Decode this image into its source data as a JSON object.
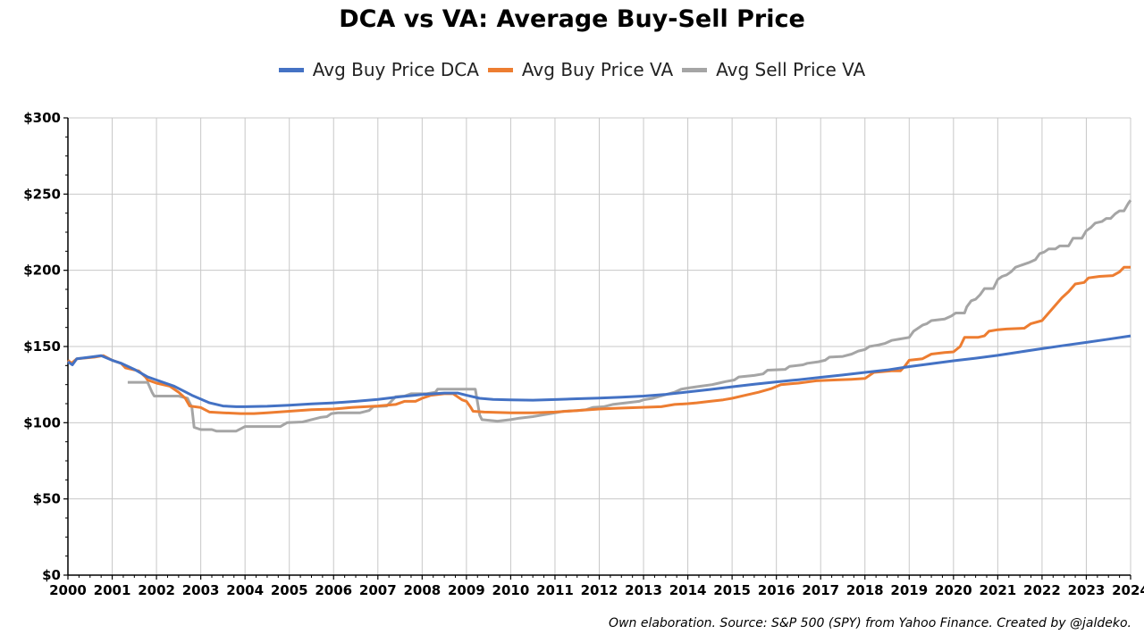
{
  "chart_data": {
    "type": "line",
    "title": "DCA vs VA: Average Buy-Sell Price",
    "xlabel": "",
    "ylabel": "",
    "xlim": [
      2000,
      2024
    ],
    "ylim": [
      0,
      300
    ],
    "x_ticks": [
      2000,
      2001,
      2002,
      2003,
      2004,
      2005,
      2006,
      2007,
      2008,
      2009,
      2010,
      2011,
      2012,
      2013,
      2014,
      2015,
      2016,
      2017,
      2018,
      2019,
      2020,
      2021,
      2022,
      2023,
      2024
    ],
    "x_tick_labels": [
      "2000",
      "2001",
      "2002",
      "2003",
      "2004",
      "2005",
      "2006",
      "2007",
      "2008",
      "2009",
      "2010",
      "2011",
      "2012",
      "2013",
      "2014",
      "2015",
      "2016",
      "2017",
      "2018",
      "2019",
      "2020",
      "2021",
      "2022",
      "2023",
      "2024"
    ],
    "y_ticks": [
      0,
      50,
      100,
      150,
      200,
      250,
      300
    ],
    "y_tick_labels": [
      "$0",
      "$50",
      "$100",
      "$150",
      "$200",
      "$250",
      "$300"
    ],
    "grid": true,
    "legend_position": "top-center",
    "series": [
      {
        "name": "Avg Buy Price DCA",
        "color": "#4472C4",
        "points": [
          [
            2000.0,
            140
          ],
          [
            2000.1,
            138
          ],
          [
            2000.2,
            142
          ],
          [
            2000.5,
            143
          ],
          [
            2000.75,
            144
          ],
          [
            2001.0,
            141
          ],
          [
            2001.2,
            139
          ],
          [
            2001.5,
            135
          ],
          [
            2001.8,
            130
          ],
          [
            2002.0,
            128
          ],
          [
            2002.4,
            124
          ],
          [
            2002.8,
            118
          ],
          [
            2003.2,
            113
          ],
          [
            2003.5,
            111
          ],
          [
            2003.8,
            110.5
          ],
          [
            2004.0,
            110.5
          ],
          [
            2004.5,
            110.8
          ],
          [
            2005.0,
            111.5
          ],
          [
            2005.5,
            112.3
          ],
          [
            2006.0,
            113.0
          ],
          [
            2006.5,
            114.0
          ],
          [
            2007.0,
            115.3
          ],
          [
            2007.5,
            117.0
          ],
          [
            2008.0,
            118.5
          ],
          [
            2008.5,
            119.5
          ],
          [
            2008.8,
            119.5
          ],
          [
            2009.0,
            118
          ],
          [
            2009.3,
            116
          ],
          [
            2009.6,
            115.3
          ],
          [
            2010.0,
            115.0
          ],
          [
            2010.5,
            114.8
          ],
          [
            2011.0,
            115.2
          ],
          [
            2011.5,
            115.7
          ],
          [
            2012.0,
            116.2
          ],
          [
            2012.5,
            116.8
          ],
          [
            2013.0,
            117.5
          ],
          [
            2013.5,
            118.6
          ],
          [
            2014.0,
            120.2
          ],
          [
            2014.5,
            121.8
          ],
          [
            2015.0,
            123.6
          ],
          [
            2015.5,
            125.3
          ],
          [
            2016.0,
            126.8
          ],
          [
            2016.5,
            128.2
          ],
          [
            2017.0,
            129.8
          ],
          [
            2017.5,
            131.3
          ],
          [
            2018.0,
            133.0
          ],
          [
            2018.5,
            134.6
          ],
          [
            2019.0,
            136.8
          ],
          [
            2019.5,
            138.7
          ],
          [
            2020.0,
            140.6
          ],
          [
            2020.5,
            142.3
          ],
          [
            2021.0,
            144.2
          ],
          [
            2021.5,
            146.4
          ],
          [
            2022.0,
            148.6
          ],
          [
            2022.5,
            150.7
          ],
          [
            2023.0,
            152.7
          ],
          [
            2023.5,
            154.8
          ],
          [
            2024.0,
            157
          ]
        ]
      },
      {
        "name": "Avg Buy Price VA",
        "color": "#ED7D31",
        "points": [
          [
            2000.0,
            141
          ],
          [
            2000.08,
            139
          ],
          [
            2000.2,
            142
          ],
          [
            2000.6,
            143
          ],
          [
            2000.8,
            144
          ],
          [
            2001.0,
            141
          ],
          [
            2001.2,
            139
          ],
          [
            2001.3,
            136
          ],
          [
            2001.6,
            134
          ],
          [
            2001.75,
            130
          ],
          [
            2001.8,
            128
          ],
          [
            2002.0,
            126
          ],
          [
            2002.3,
            124
          ],
          [
            2002.5,
            120
          ],
          [
            2002.65,
            116
          ],
          [
            2002.75,
            111
          ],
          [
            2003.0,
            110
          ],
          [
            2003.2,
            107
          ],
          [
            2003.5,
            106.5
          ],
          [
            2003.9,
            106
          ],
          [
            2004.2,
            106
          ],
          [
            2004.5,
            106.5
          ],
          [
            2005.0,
            107.5
          ],
          [
            2005.5,
            108.5
          ],
          [
            2006.0,
            109
          ],
          [
            2006.4,
            110
          ],
          [
            2007.0,
            111
          ],
          [
            2007.4,
            112
          ],
          [
            2007.6,
            114
          ],
          [
            2007.85,
            114
          ],
          [
            2008.0,
            116
          ],
          [
            2008.2,
            118
          ],
          [
            2008.5,
            119
          ],
          [
            2008.7,
            119
          ],
          [
            2008.9,
            115
          ],
          [
            2009.0,
            114
          ],
          [
            2009.1,
            110
          ],
          [
            2009.15,
            107.5
          ],
          [
            2009.4,
            107
          ],
          [
            2010.0,
            106.5
          ],
          [
            2010.5,
            106.5
          ],
          [
            2011.0,
            107
          ],
          [
            2011.5,
            108
          ],
          [
            2012.0,
            109
          ],
          [
            2012.4,
            109.5
          ],
          [
            2012.9,
            110
          ],
          [
            2013.4,
            110.5
          ],
          [
            2013.7,
            112
          ],
          [
            2014.0,
            112.5
          ],
          [
            2014.2,
            113
          ],
          [
            2014.5,
            114
          ],
          [
            2014.8,
            115
          ],
          [
            2015.0,
            116
          ],
          [
            2015.3,
            118
          ],
          [
            2015.6,
            120
          ],
          [
            2015.9,
            122.5
          ],
          [
            2016.1,
            125
          ],
          [
            2016.5,
            126
          ],
          [
            2016.9,
            127.5
          ],
          [
            2017.3,
            128
          ],
          [
            2017.7,
            128.5
          ],
          [
            2018.0,
            129
          ],
          [
            2018.2,
            133
          ],
          [
            2018.6,
            134
          ],
          [
            2018.8,
            134
          ],
          [
            2018.9,
            137
          ],
          [
            2019.0,
            141
          ],
          [
            2019.3,
            142
          ],
          [
            2019.5,
            145
          ],
          [
            2019.8,
            146
          ],
          [
            2020.0,
            146.5
          ],
          [
            2020.15,
            150
          ],
          [
            2020.25,
            156
          ],
          [
            2020.55,
            156
          ],
          [
            2020.7,
            157
          ],
          [
            2020.8,
            160
          ],
          [
            2021.0,
            161
          ],
          [
            2021.2,
            161.5
          ],
          [
            2021.6,
            162
          ],
          [
            2021.75,
            165
          ],
          [
            2022.0,
            167
          ],
          [
            2022.15,
            172
          ],
          [
            2022.3,
            177
          ],
          [
            2022.45,
            182
          ],
          [
            2022.6,
            186
          ],
          [
            2022.75,
            191
          ],
          [
            2022.95,
            192
          ],
          [
            2023.05,
            195
          ],
          [
            2023.3,
            196
          ],
          [
            2023.6,
            196.5
          ],
          [
            2023.75,
            199
          ],
          [
            2023.85,
            202
          ],
          [
            2024.0,
            202
          ]
        ]
      },
      {
        "name": "Avg Sell Price VA",
        "color": "#A5A5A5",
        "points": [
          [
            2001.35,
            126.5
          ],
          [
            2001.8,
            126.5
          ],
          [
            2001.9,
            120
          ],
          [
            2001.95,
            117.5
          ],
          [
            2002.5,
            117.5
          ],
          [
            2002.7,
            116
          ],
          [
            2002.8,
            110
          ],
          [
            2002.85,
            97
          ],
          [
            2003.0,
            95.5
          ],
          [
            2003.25,
            95.5
          ],
          [
            2003.35,
            94.5
          ],
          [
            2003.8,
            94.5
          ],
          [
            2003.9,
            96
          ],
          [
            2004.0,
            97.5
          ],
          [
            2004.8,
            97.5
          ],
          [
            2004.95,
            100
          ],
          [
            2005.3,
            100.5
          ],
          [
            2005.5,
            102
          ],
          [
            2005.7,
            103.5
          ],
          [
            2005.85,
            104
          ],
          [
            2005.95,
            106
          ],
          [
            2006.1,
            106.5
          ],
          [
            2006.6,
            106.5
          ],
          [
            2006.8,
            108
          ],
          [
            2006.9,
            110.5
          ],
          [
            2007.2,
            111
          ],
          [
            2007.3,
            114
          ],
          [
            2007.4,
            117
          ],
          [
            2007.6,
            117.5
          ],
          [
            2007.75,
            119
          ],
          [
            2008.1,
            119
          ],
          [
            2008.3,
            120
          ],
          [
            2008.35,
            122
          ],
          [
            2009.2,
            122
          ],
          [
            2009.3,
            105
          ],
          [
            2009.35,
            102
          ],
          [
            2009.7,
            101
          ],
          [
            2010.0,
            102
          ],
          [
            2010.2,
            103
          ],
          [
            2010.5,
            104
          ],
          [
            2010.7,
            105
          ],
          [
            2010.9,
            106
          ],
          [
            2011.2,
            107.5
          ],
          [
            2011.5,
            108
          ],
          [
            2011.7,
            108.5
          ],
          [
            2011.85,
            110
          ],
          [
            2012.1,
            110.5
          ],
          [
            2012.3,
            112
          ],
          [
            2012.6,
            113
          ],
          [
            2012.9,
            114
          ],
          [
            2013.0,
            115
          ],
          [
            2013.2,
            116
          ],
          [
            2013.45,
            118
          ],
          [
            2013.7,
            120
          ],
          [
            2013.85,
            122
          ],
          [
            2014.05,
            123
          ],
          [
            2014.3,
            124
          ],
          [
            2014.55,
            125
          ],
          [
            2014.7,
            126
          ],
          [
            2014.85,
            127
          ],
          [
            2015.05,
            128
          ],
          [
            2015.15,
            130
          ],
          [
            2015.5,
            131
          ],
          [
            2015.7,
            132
          ],
          [
            2015.8,
            134.5
          ],
          [
            2016.2,
            135
          ],
          [
            2016.3,
            137
          ],
          [
            2016.6,
            138
          ],
          [
            2016.7,
            139
          ],
          [
            2016.95,
            140
          ],
          [
            2017.1,
            141
          ],
          [
            2017.2,
            143
          ],
          [
            2017.5,
            143.5
          ],
          [
            2017.7,
            145
          ],
          [
            2017.85,
            147
          ],
          [
            2018.0,
            148
          ],
          [
            2018.1,
            150
          ],
          [
            2018.3,
            151
          ],
          [
            2018.45,
            152
          ],
          [
            2018.6,
            154
          ],
          [
            2018.8,
            155
          ],
          [
            2019.0,
            156
          ],
          [
            2019.1,
            160
          ],
          [
            2019.2,
            162
          ],
          [
            2019.3,
            164
          ],
          [
            2019.4,
            165
          ],
          [
            2019.5,
            167
          ],
          [
            2019.8,
            168
          ],
          [
            2019.95,
            170
          ],
          [
            2020.05,
            172
          ],
          [
            2020.25,
            172
          ],
          [
            2020.3,
            176
          ],
          [
            2020.4,
            180
          ],
          [
            2020.5,
            181
          ],
          [
            2020.6,
            184
          ],
          [
            2020.7,
            188
          ],
          [
            2020.9,
            188
          ],
          [
            2021.0,
            194
          ],
          [
            2021.1,
            196
          ],
          [
            2021.2,
            197
          ],
          [
            2021.3,
            199
          ],
          [
            2021.4,
            202
          ],
          [
            2021.5,
            203
          ],
          [
            2021.7,
            205
          ],
          [
            2021.85,
            207
          ],
          [
            2021.95,
            211
          ],
          [
            2022.05,
            212
          ],
          [
            2022.15,
            214
          ],
          [
            2022.3,
            214
          ],
          [
            2022.4,
            216
          ],
          [
            2022.6,
            216
          ],
          [
            2022.7,
            221
          ],
          [
            2022.9,
            221
          ],
          [
            2023.0,
            226
          ],
          [
            2023.1,
            228
          ],
          [
            2023.2,
            231
          ],
          [
            2023.35,
            232
          ],
          [
            2023.45,
            234
          ],
          [
            2023.55,
            234
          ],
          [
            2023.65,
            237
          ],
          [
            2023.75,
            239
          ],
          [
            2023.85,
            239
          ],
          [
            2023.95,
            244
          ],
          [
            2024.0,
            246
          ]
        ]
      }
    ],
    "footnote": "Own elaboration. Source: S&P 500 (SPY) from Yahoo Finance. Created by @jaldeko."
  }
}
